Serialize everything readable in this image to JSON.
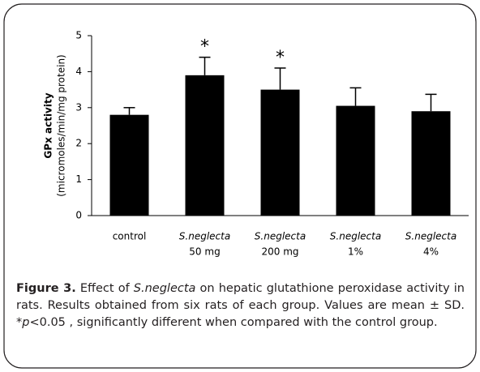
{
  "chart_data": {
    "type": "bar",
    "ylabel": [
      "GPx activity",
      "(micromoles/min/mg protein)"
    ],
    "categories": [
      [
        "control"
      ],
      [
        "S.neglecta",
        "50 mg"
      ],
      [
        "S.neglecta",
        "200 mg"
      ],
      [
        "S.neglecta",
        "1%"
      ],
      [
        "S.neglecta",
        "4%"
      ]
    ],
    "values": [
      2.8,
      3.9,
      3.5,
      3.05,
      2.9
    ],
    "errors": [
      0.2,
      0.5,
      0.6,
      0.5,
      0.47
    ],
    "annotations": [
      null,
      "*",
      "*",
      null,
      null
    ],
    "color": "#000000",
    "ylim": [
      0,
      5
    ],
    "yticks": [
      0,
      1,
      2,
      3,
      4,
      5
    ],
    "grid": false
  },
  "caption": {
    "label": "Figure 3.",
    "parts": [
      "Effect of ",
      "S.neglecta",
      " on hepatic glutathione peroxidase activity in rats. Results obtained from six rats of each group. Values are mean ± SD. *",
      "p",
      "<0.05 , significantly different when compared with the control group."
    ]
  }
}
